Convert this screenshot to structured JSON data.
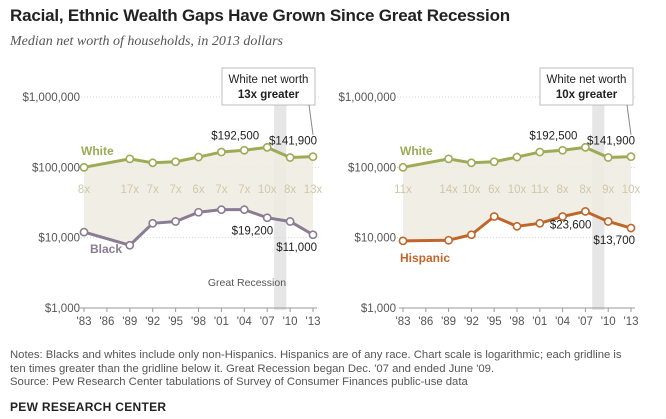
{
  "title": "Racial, Ethnic Wealth Gaps Have Grown Since Great Recession",
  "subtitle": "Median net worth of households, in 2013 dollars",
  "notes": [
    "Notes: Blacks and whites include only non-Hispanics. Hispanics are of any race. Chart scale is logarithmic; each gridline is",
    "ten times greater than the gridline below it. Great Recession began Dec. '07 and ended June '09.",
    "Source: Pew Research Center tabulations of Survey of Consumer Finances public-use data"
  ],
  "brand": "PEW RESEARCH CENTER",
  "colors": {
    "white_line": "#9eaa55",
    "black_line": "#8a7c93",
    "hispanic_line": "#c0662b",
    "band": "#eeece1",
    "recession": "#e6e6e6",
    "ratio_text": "#cfc7a9",
    "grid": "#d5d5d5"
  },
  "chart_data": [
    {
      "type": "line",
      "yscale": "log",
      "ylim": [
        1000,
        1000000
      ],
      "yticks": [
        1000,
        10000,
        100000,
        1000000
      ],
      "ytick_labels": [
        "$1,000",
        "$10,000",
        "$100,000",
        "$1,000,000"
      ],
      "x": [
        1983,
        1989,
        1992,
        1995,
        1998,
        2001,
        2004,
        2007,
        2010,
        2013
      ],
      "xtick_labels": [
        "'83",
        "'86",
        "'89",
        "'92",
        "'95",
        "'98",
        "'01",
        "'04",
        "'07",
        "'10",
        "'13"
      ],
      "xtick_years": [
        1983,
        1986,
        1989,
        1992,
        1995,
        1998,
        2001,
        2004,
        2007,
        2010,
        2013
      ],
      "series": [
        {
          "name": "White",
          "key": "white_line",
          "values": [
            100000,
            132000,
            116000,
            120000,
            140000,
            165000,
            175000,
            192500,
            138000,
            141900
          ]
        },
        {
          "name": "Black",
          "key": "black_line",
          "values": [
            12000,
            7800,
            16000,
            17000,
            23000,
            25000,
            25000,
            19200,
            17000,
            11000
          ]
        }
      ],
      "ratios": [
        "8x",
        "17x",
        "7x",
        "7x",
        "6x",
        "7x",
        "7x",
        "10x",
        "8x",
        "13x"
      ],
      "recession": [
        2007.9,
        2009.5
      ],
      "recession_label": "Great Recession",
      "callout_line1": "White net worth",
      "callout_line2": "13x greater",
      "labels": {
        "white_peak": "$192,500",
        "white_end": "$141,900",
        "minority_2007": "$19,200",
        "minority_end": "$11,000"
      }
    },
    {
      "type": "line",
      "yscale": "log",
      "ylim": [
        1000,
        1000000
      ],
      "yticks": [
        1000,
        10000,
        100000,
        1000000
      ],
      "ytick_labels": [
        "$1,000",
        "$10,000",
        "$100,000",
        "$1,000,000"
      ],
      "x": [
        1983,
        1989,
        1992,
        1995,
        1998,
        2001,
        2004,
        2007,
        2010,
        2013
      ],
      "xtick_labels": [
        "'83",
        "'86",
        "'89",
        "'92",
        "'95",
        "'98",
        "'01",
        "'04",
        "'07",
        "'10",
        "'13"
      ],
      "xtick_years": [
        1983,
        1986,
        1989,
        1992,
        1995,
        1998,
        2001,
        2004,
        2007,
        2010,
        2013
      ],
      "series": [
        {
          "name": "White",
          "key": "white_line",
          "values": [
            100000,
            132000,
            116000,
            120000,
            140000,
            165000,
            175000,
            192500,
            138000,
            141900
          ]
        },
        {
          "name": "Hispanic",
          "key": "hispanic_line",
          "values": [
            9000,
            9200,
            11000,
            20000,
            14500,
            16000,
            20000,
            23600,
            17000,
            13700
          ]
        }
      ],
      "ratios": [
        "11x",
        "14x",
        "10x",
        "6x",
        "10x",
        "11x",
        "8x",
        "8x",
        "9x",
        "10x"
      ],
      "recession": [
        2007.9,
        2009.5
      ],
      "recession_label": "",
      "callout_line1": "White net worth",
      "callout_line2": "10x greater",
      "labels": {
        "white_peak": "$192,500",
        "white_end": "$141,900",
        "minority_2007": "$23,600",
        "minority_end": "$13,700"
      }
    }
  ]
}
